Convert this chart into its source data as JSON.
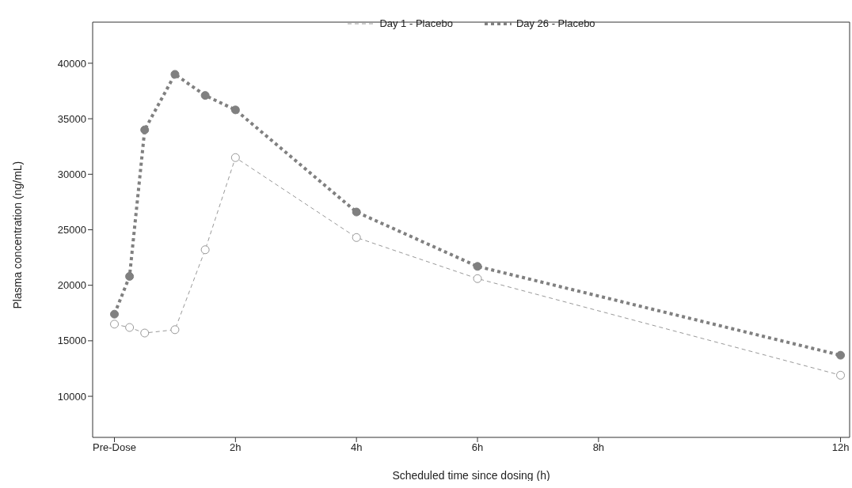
{
  "chart_data": {
    "type": "line",
    "xlabel": "Scheduled time since dosing (h)",
    "ylabel": "Plasma concentration (ng/mL)",
    "xlim": [
      -0.36,
      12.15
    ],
    "xticks": [
      {
        "value": 0,
        "label": "Pre-Dose"
      },
      {
        "value": 2,
        "label": "2h"
      },
      {
        "value": 4,
        "label": "4h"
      },
      {
        "value": 6,
        "label": "6h"
      },
      {
        "value": 8,
        "label": "8h"
      },
      {
        "value": 12,
        "label": "12h"
      }
    ],
    "ylim": [
      6300,
      43700
    ],
    "yticks": [
      10000,
      15000,
      20000,
      25000,
      30000,
      35000,
      40000
    ],
    "legend": "top",
    "marker": "circle",
    "series": [
      {
        "name": "Day 1 - Placebo",
        "color": "#999999",
        "line_style": "dashed",
        "x": [
          0,
          0.25,
          0.5,
          1,
          1.5,
          2,
          4,
          6,
          12
        ],
        "values": [
          16500,
          16200,
          15700,
          16000,
          23200,
          31500,
          24300,
          20600,
          11900
        ]
      },
      {
        "name": "Day 26 - Placebo",
        "color": "#808080",
        "line_style": "dotted",
        "x": [
          0,
          0.25,
          0.5,
          1,
          1.5,
          2,
          4,
          6,
          12
        ],
        "values": [
          17400,
          20800,
          34000,
          39000,
          37100,
          35800,
          26600,
          21700,
          13700
        ]
      }
    ]
  }
}
